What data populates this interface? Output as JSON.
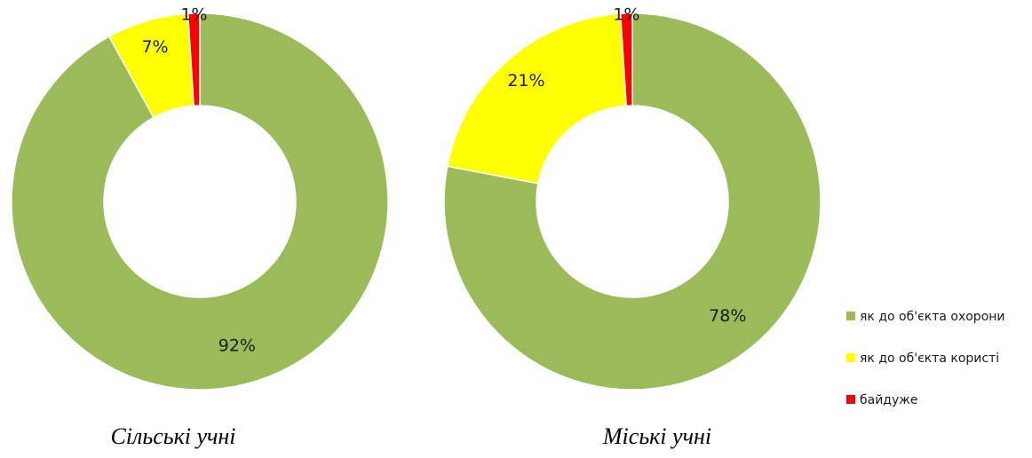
{
  "chart_data": {
    "type": "pie",
    "style": "donut",
    "legend_position": "right",
    "categories": [
      "як до об'єкта охорони",
      "як до об'єкта користі",
      "байдуже"
    ],
    "colors": [
      "#9BBB59",
      "#FFFF00",
      "#FF0000"
    ],
    "legend_labels": [
      "як до об'єкта охорони",
      "як до об'єкта користі",
      "байдуже"
    ],
    "charts": [
      {
        "caption": "Сільські учні",
        "values": [
          92,
          7,
          1
        ],
        "labels": [
          "92%",
          "7%",
          "1%"
        ]
      },
      {
        "caption": "Міські учні",
        "values": [
          78,
          21,
          1
        ],
        "labels": [
          "78%",
          "21%",
          "1%"
        ]
      }
    ]
  }
}
